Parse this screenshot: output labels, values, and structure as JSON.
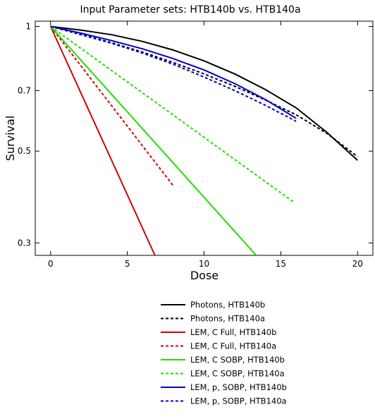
{
  "chart_data": {
    "type": "line",
    "title": "Input Parameter sets: HTB140b vs. HTB140a",
    "xlabel": "Dose",
    "ylabel": "Survival",
    "xlim": [
      -1,
      21
    ],
    "ylim": [
      0.28,
      1.03
    ],
    "yscale": "log",
    "x_ticks": [
      0,
      5,
      10,
      15,
      20
    ],
    "x_tick_labels": [
      "0",
      "5",
      "10",
      "15",
      "20"
    ],
    "y_ticks": [
      1.0,
      0.7,
      0.5,
      0.3
    ],
    "y_tick_labels": [
      "1",
      "0.7",
      "0.5",
      "0.3"
    ],
    "grid": false,
    "legend_position": "below",
    "series": [
      {
        "name": "Photons, HTB140b",
        "color": "#000000",
        "dash": "solid",
        "x": [
          0,
          2,
          4,
          6,
          8,
          10,
          12,
          14,
          16,
          18,
          20
        ],
        "y": [
          1.0,
          0.98,
          0.955,
          0.92,
          0.877,
          0.826,
          0.768,
          0.704,
          0.636,
          0.555,
          0.475
        ]
      },
      {
        "name": "Photons, HTB140a",
        "color": "#000000",
        "dash": "dashed",
        "x": [
          0,
          2,
          4,
          6,
          8,
          10,
          12,
          14,
          16,
          18,
          20
        ],
        "y": [
          1.0,
          0.957,
          0.913,
          0.867,
          0.818,
          0.768,
          0.717,
          0.664,
          0.612,
          0.552,
          0.485
        ]
      },
      {
        "name": "LEM, C Full, HTB140b",
        "color": "#d40000",
        "dash": "solid",
        "x": [
          0,
          6.8
        ],
        "y": [
          1.0,
          0.28
        ]
      },
      {
        "name": "LEM, C Full, HTB140a",
        "color": "#d40000",
        "dash": "dashed",
        "x": [
          0,
          8
        ],
        "y": [
          1.0,
          0.412
        ]
      },
      {
        "name": "LEM, C SOBP, HTB140b",
        "color": "#22dd00",
        "dash": "solid",
        "x": [
          0,
          13.4
        ],
        "y": [
          1.0,
          0.28
        ]
      },
      {
        "name": "LEM, C SOBP, HTB140a",
        "color": "#22dd00",
        "dash": "dashed",
        "x": [
          0,
          15.9
        ],
        "y": [
          1.0,
          0.375
        ]
      },
      {
        "name": "LEM, p, SOBP, HTB140b",
        "color": "#0000cc",
        "dash": "solid",
        "x": [
          0,
          2,
          4,
          6,
          8,
          10,
          12,
          14,
          16
        ],
        "y": [
          1.0,
          0.963,
          0.924,
          0.883,
          0.836,
          0.785,
          0.728,
          0.666,
          0.6
        ]
      },
      {
        "name": "LEM, p, SOBP, HTB140a",
        "color": "#0000cc",
        "dash": "dashed",
        "x": [
          0,
          2,
          4,
          6,
          8,
          10,
          12,
          14,
          16
        ],
        "y": [
          1.0,
          0.955,
          0.91,
          0.862,
          0.81,
          0.755,
          0.7,
          0.645,
          0.59
        ]
      }
    ]
  }
}
